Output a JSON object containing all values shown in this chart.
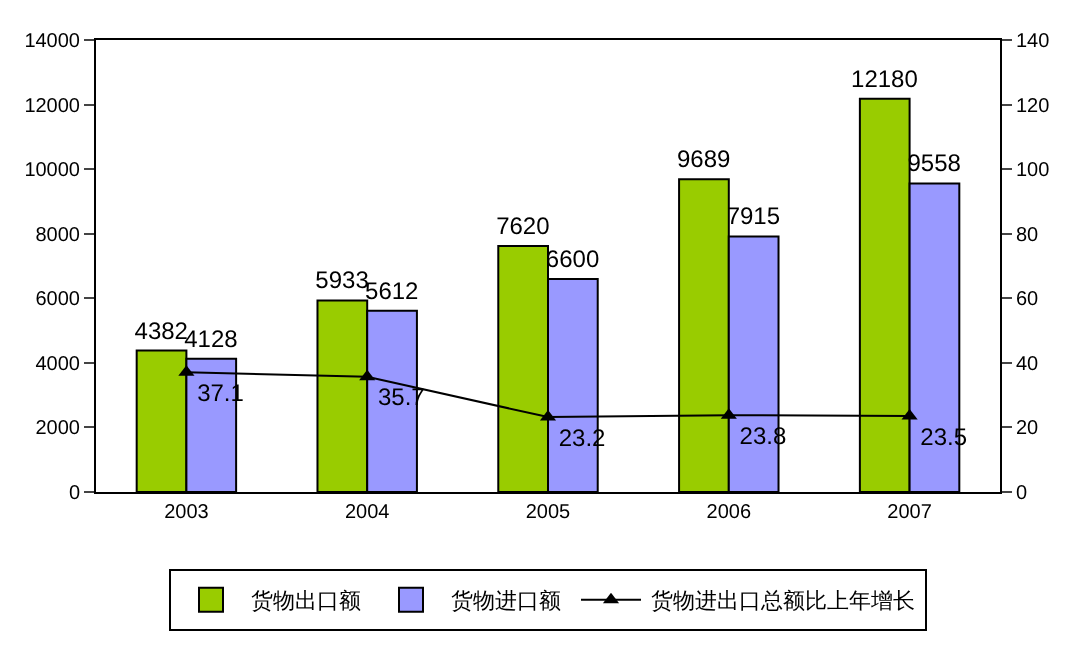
{
  "chart_data": {
    "type": "bar",
    "categories": [
      "2003",
      "2004",
      "2005",
      "2006",
      "2007"
    ],
    "series": [
      {
        "name": "货物出口额",
        "color": "#99cc00",
        "values": [
          4382,
          5933,
          7620,
          9689,
          12180
        ]
      },
      {
        "name": "货物进口额",
        "color": "#9999ff",
        "values": [
          4128,
          5612,
          6600,
          7915,
          9558
        ]
      },
      {
        "name": "货物进出口总额比上年增长",
        "color": "#000000",
        "type": "line",
        "axis": "y2",
        "marker": "triangle",
        "values": [
          37.1,
          35.7,
          23.2,
          23.8,
          23.5
        ]
      }
    ],
    "ylim": [
      0,
      14000
    ],
    "yticks": [
      0,
      2000,
      4000,
      6000,
      8000,
      10000,
      12000,
      14000
    ],
    "y2lim": [
      0,
      140
    ],
    "y2ticks": [
      0,
      20,
      40,
      60,
      80,
      100,
      120,
      140
    ],
    "data_labels": true,
    "grid": false,
    "legend": "bottom"
  }
}
